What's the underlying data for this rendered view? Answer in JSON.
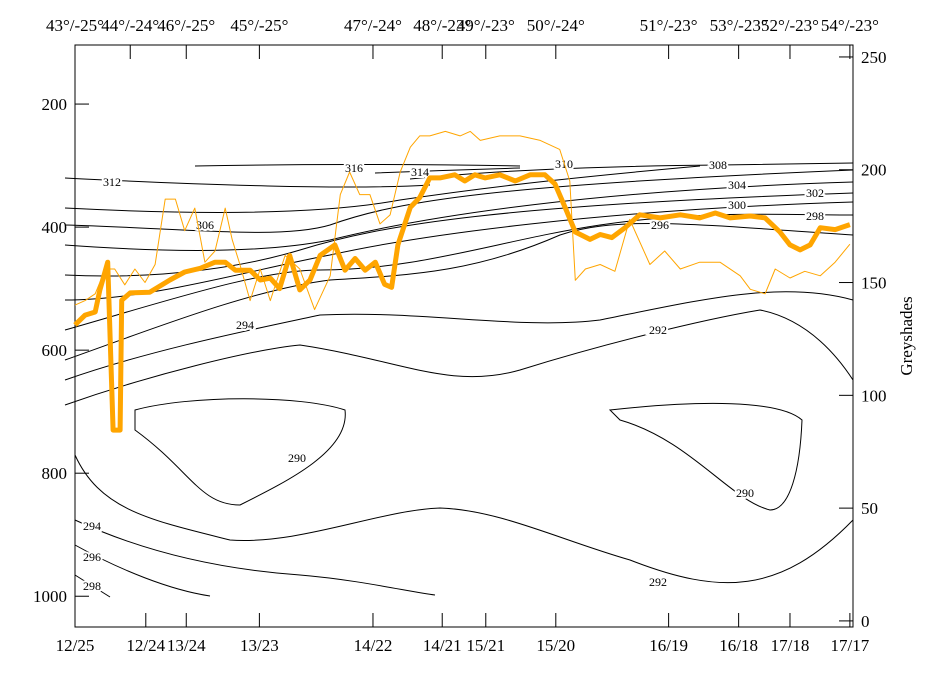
{
  "chart_data": {
    "type": "line",
    "ylabel2": "Greyshades",
    "xlim": [
      0,
      100
    ],
    "xticks": [
      {
        "value": 0,
        "label": "12/25"
      },
      {
        "value": 9.1,
        "label": "12/24"
      },
      {
        "value": 14.3,
        "label": "13/24"
      },
      {
        "value": 23.7,
        "label": "13/23"
      },
      {
        "value": 38.3,
        "label": "14/22"
      },
      {
        "value": 47.2,
        "label": "14/21"
      },
      {
        "value": 52.8,
        "label": "15/21"
      },
      {
        "value": 61.8,
        "label": "15/20"
      },
      {
        "value": 76.3,
        "label": "16/19"
      },
      {
        "value": 85.3,
        "label": "16/18"
      },
      {
        "value": 91.9,
        "label": "17/18"
      },
      {
        "value": 99.6,
        "label": "17/17"
      }
    ],
    "top_ticks": [
      {
        "value": 0,
        "label": "43°/-25°"
      },
      {
        "value": 7.1,
        "label": "44°/-24°"
      },
      {
        "value": 14.3,
        "label": "46°/-25°"
      },
      {
        "value": 23.7,
        "label": "45°/-25°"
      },
      {
        "value": 38.3,
        "label": "47°/-24°"
      },
      {
        "value": 47.2,
        "label": "48°/-23°"
      },
      {
        "value": 52.8,
        "label": "49°/-23°"
      },
      {
        "value": 61.8,
        "label": "50°/-24°"
      },
      {
        "value": 76.3,
        "label": "51°/-23°"
      },
      {
        "value": 85.3,
        "label": "53°/-23°"
      },
      {
        "value": 91.9,
        "label": "52°/-23°"
      },
      {
        "value": 99.6,
        "label": "54°/-23°"
      }
    ],
    "ylim": [
      1050,
      104
    ],
    "yticks": [
      200,
      400,
      600,
      800,
      1000
    ],
    "y2lim": [
      -2.7,
      255.3
    ],
    "y2ticks": [
      0,
      50,
      100,
      150,
      200,
      250
    ],
    "contours": [
      316,
      314,
      310,
      312,
      308,
      306,
      304,
      302,
      300,
      298,
      296,
      294,
      292,
      290,
      290,
      292,
      294,
      296,
      298
    ],
    "series": [
      {
        "color": "#ffa500",
        "width": 5,
        "x": [
          0,
          1.3,
          2.6,
          3.2,
          4.2,
          4.9,
          5.8,
          6.0,
          7.1,
          9.6,
          12.2,
          14.1,
          16.1,
          18.0,
          19.3,
          20.6,
          22.5,
          23.8,
          25.1,
          26.3,
          27.6,
          28.9,
          30.2,
          31.5,
          33.4,
          34.7,
          36.0,
          37.3,
          38.6,
          39.8,
          40.7,
          41.5,
          43.1,
          44.3,
          45.6,
          46.9,
          48.8,
          50.1,
          51.4,
          52.7,
          54.6,
          56.6,
          58.5,
          60.4,
          61.7,
          63.0,
          64.3,
          66.2,
          67.5,
          69.0,
          70.7,
          72.6,
          75.2,
          77.8,
          80.3,
          82.3,
          84.2,
          86.8,
          88.7,
          90.6,
          91.9,
          93.2,
          94.5,
          95.8,
          97.7,
          99.6
        ],
        "values": [
          559,
          543,
          538,
          502,
          457,
          730,
          730,
          519,
          507,
          506,
          486,
          473,
          467,
          457,
          457,
          470,
          470,
          486,
          483,
          500,
          446,
          502,
          486,
          446,
          429,
          470,
          451,
          470,
          457,
          493,
          498,
          429,
          368,
          352,
          320,
          320,
          315,
          325,
          315,
          320,
          315,
          325,
          315,
          315,
          330,
          368,
          408,
          420,
          412,
          417,
          401,
          380,
          385,
          380,
          385,
          377,
          385,
          382,
          385,
          408,
          429,
          437,
          429,
          401,
          404,
          396
        ]
      },
      {
        "color": "#ffa500",
        "width": 1,
        "axis": "y2",
        "x": [
          0,
          1.3,
          2.6,
          3.9,
          5.1,
          6.4,
          7.7,
          9.0,
          10.3,
          11.6,
          12.9,
          14.1,
          15.4,
          16.7,
          18.0,
          19.3,
          20.2,
          21.2,
          22.5,
          23.8,
          25.1,
          27.0,
          28.9,
          30.8,
          32.8,
          34.1,
          35.3,
          36.6,
          37.9,
          39.2,
          40.5,
          41.8,
          43.1,
          44.3,
          45.6,
          47.6,
          49.5,
          50.8,
          52.1,
          54.6,
          57.2,
          59.8,
          62.3,
          63.6,
          64.3,
          65.6,
          67.5,
          69.4,
          71.3,
          73.9,
          75.8,
          77.8,
          80.3,
          82.9,
          85.5,
          86.8,
          88.7,
          90.0,
          91.9,
          93.8,
          95.8,
          97.7,
          99.6
        ],
        "values": [
          140,
          142,
          145,
          156,
          156,
          149,
          156,
          150,
          158,
          187,
          187,
          173,
          183,
          159,
          164,
          183,
          169,
          158,
          142,
          156,
          142,
          162,
          156,
          138,
          153,
          189,
          199,
          189,
          189,
          176,
          180,
          199,
          210,
          215,
          215,
          217,
          215,
          217,
          213,
          215,
          215,
          213,
          209,
          195,
          151,
          156,
          158,
          155,
          178,
          158,
          164,
          156,
          159,
          159,
          153,
          147,
          145,
          156,
          152,
          155,
          153,
          159,
          167
        ]
      }
    ]
  }
}
